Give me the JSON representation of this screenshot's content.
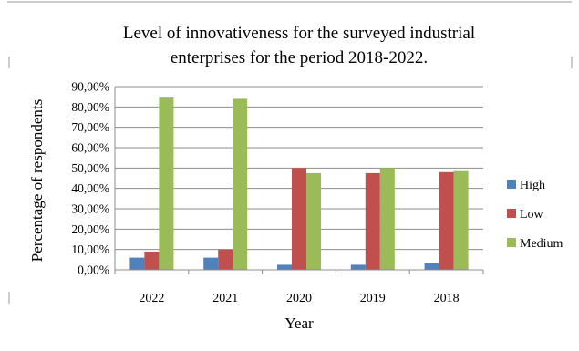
{
  "chart_data": {
    "type": "bar",
    "title": "Level of innovativeness for the surveyed industrial enterprises for the period 2018-2022.",
    "title_lines": [
      "Level of innovativeness for the surveyed industrial",
      "enterprises for the period 2018-2022."
    ],
    "xlabel": "Year",
    "ylabel": "Percentage of respondents",
    "categories": [
      "2022",
      "2021",
      "2020",
      "2019",
      "2018"
    ],
    "series": [
      {
        "name": "High",
        "color": "#4f81bd",
        "values": [
          0.06,
          0.06,
          0.025,
          0.025,
          0.035
        ]
      },
      {
        "name": "Low",
        "color": "#c0504d",
        "values": [
          0.09,
          0.1,
          0.5,
          0.475,
          0.48
        ]
      },
      {
        "name": "Medium",
        "color": "#9bbb59",
        "values": [
          0.85,
          0.84,
          0.475,
          0.5,
          0.485
        ]
      }
    ],
    "ylim": [
      0,
      0.9
    ],
    "y_ticks": [
      0,
      0.1,
      0.2,
      0.3,
      0.4,
      0.5,
      0.6,
      0.7,
      0.8,
      0.9
    ],
    "y_tick_labels": [
      "0,00%",
      "10,00%",
      "20,00%",
      "30,00%",
      "40,00%",
      "50,00%",
      "60,00%",
      "70,00%",
      "80,00%",
      "90,00%"
    ],
    "grid": true,
    "legend_position": "right"
  }
}
